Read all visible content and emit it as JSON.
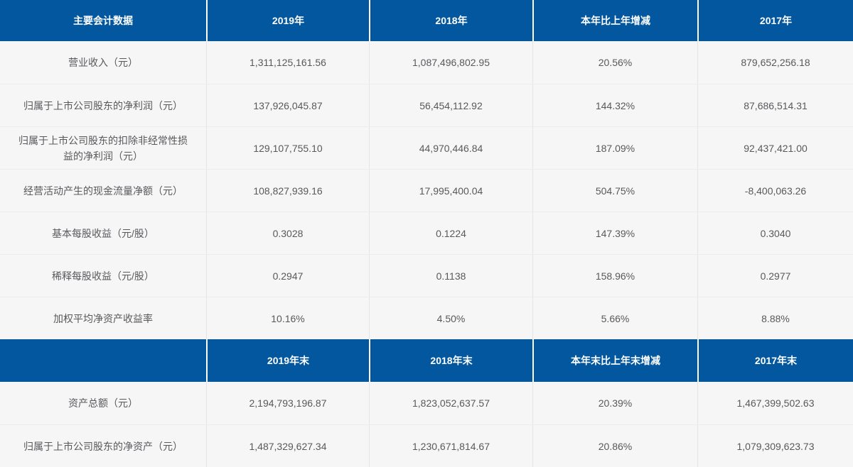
{
  "colors": {
    "header_bg": "#02579E",
    "header_text": "#ffffff",
    "row_bg": "#f6f6f7",
    "cell_text": "#58595b"
  },
  "table1": {
    "headers": [
      "主要会计数据",
      "2019年",
      "2018年",
      "本年比上年增减",
      "2017年"
    ],
    "rows": [
      [
        "营业收入（元）",
        "1,311,125,161.56",
        "1,087,496,802.95",
        "20.56%",
        "879,652,256.18"
      ],
      [
        "归属于上市公司股东的净利润（元）",
        "137,926,045.87",
        "56,454,112.92",
        "144.32%",
        "87,686,514.31"
      ],
      [
        "归属于上市公司股东的扣除非经常性损益的净利润（元）",
        "129,107,755.10",
        "44,970,446.84",
        "187.09%",
        "92,437,421.00"
      ],
      [
        "经营活动产生的现金流量净额（元）",
        "108,827,939.16",
        "17,995,400.04",
        "504.75%",
        "-8,400,063.26"
      ],
      [
        "基本每股收益（元/股）",
        "0.3028",
        "0.1224",
        "147.39%",
        "0.3040"
      ],
      [
        "稀释每股收益（元/股）",
        "0.2947",
        "0.1138",
        "158.96%",
        "0.2977"
      ],
      [
        "加权平均净资产收益率",
        "10.16%",
        "4.50%",
        "5.66%",
        "8.88%"
      ]
    ]
  },
  "table2": {
    "headers": [
      "",
      "2019年末",
      "2018年末",
      "本年末比上年末增减",
      "2017年末"
    ],
    "rows": [
      [
        "资产总额（元）",
        "2,194,793,196.87",
        "1,823,052,637.57",
        "20.39%",
        "1,467,399,502.63"
      ],
      [
        "归属于上市公司股东的净资产（元）",
        "1,487,329,627.34",
        "1,230,671,814.67",
        "20.86%",
        "1,079,309,623.73"
      ]
    ]
  }
}
